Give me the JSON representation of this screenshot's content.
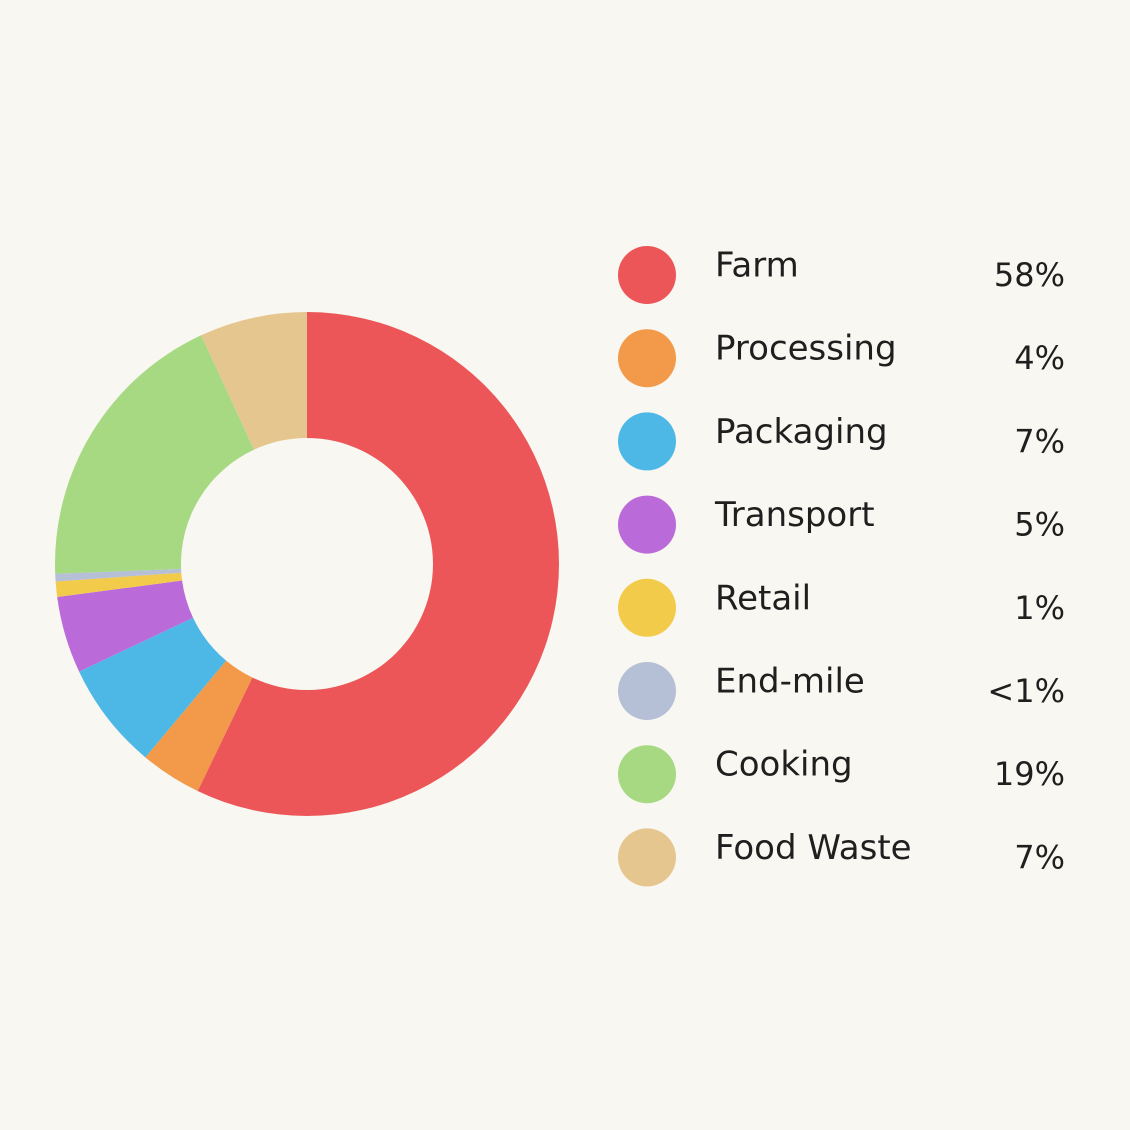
{
  "chart_data": {
    "type": "donut",
    "categories": [
      "Farm",
      "Processing",
      "Packaging",
      "Transport",
      "Retail",
      "End-mile",
      "Cooking",
      "Food Waste"
    ],
    "values": [
      58,
      4,
      7,
      5,
      1,
      0.5,
      19,
      7
    ],
    "value_labels": [
      "58%",
      "4%",
      "7%",
      "5%",
      "1%",
      "<1%",
      "19%",
      "7%"
    ],
    "colors": [
      "#ec5659",
      "#f29a4a",
      "#4db8e6",
      "#bb6bd9",
      "#f2cb4b",
      "#b5bfd6",
      "#a6d982",
      "#e6c68f"
    ]
  }
}
